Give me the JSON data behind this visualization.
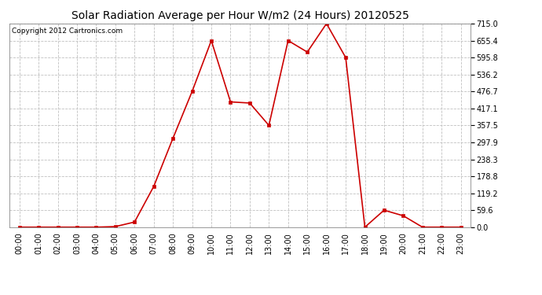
{
  "title": "Solar Radiation Average per Hour W/m2 (24 Hours) 20120525",
  "copyright": "Copyright 2012 Cartronics.com",
  "hours": [
    "00:00",
    "01:00",
    "02:00",
    "03:00",
    "04:00",
    "05:00",
    "06:00",
    "07:00",
    "08:00",
    "09:00",
    "10:00",
    "11:00",
    "12:00",
    "13:00",
    "14:00",
    "15:00",
    "16:00",
    "17:00",
    "18:00",
    "19:00",
    "20:00",
    "21:00",
    "22:00",
    "23:00"
  ],
  "values": [
    0.0,
    0.0,
    0.0,
    0.0,
    0.0,
    2.0,
    18.0,
    143.0,
    312.0,
    476.7,
    655.4,
    440.0,
    436.0,
    357.5,
    655.4,
    615.0,
    715.0,
    595.8,
    0.0,
    59.6,
    40.0,
    0.0,
    0.0,
    0.0
  ],
  "ylim": [
    0.0,
    715.0
  ],
  "yticks": [
    0.0,
    59.6,
    119.2,
    178.8,
    238.3,
    297.9,
    357.5,
    417.1,
    476.7,
    536.2,
    595.8,
    655.4,
    715.0
  ],
  "line_color": "#cc0000",
  "marker": "s",
  "marker_size": 3,
  "bg_color": "#ffffff",
  "plot_bg_color": "#ffffff",
  "grid_color": "#c0c0c0",
  "title_fontsize": 10,
  "copyright_fontsize": 6.5,
  "tick_fontsize": 7
}
